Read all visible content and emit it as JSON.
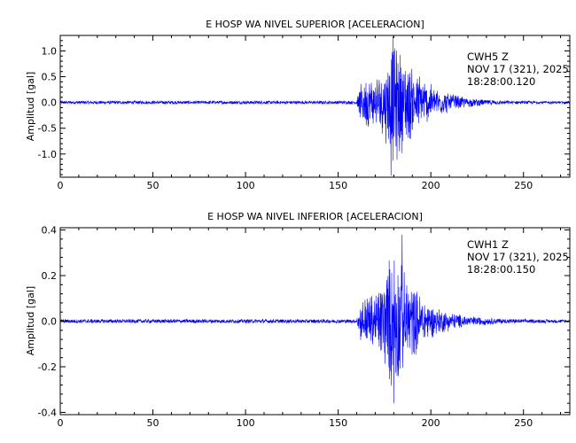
{
  "chart_data": [
    {
      "type": "line",
      "title": "E HOSP WA NIVEL SUPERIOR [ACELERACION]",
      "ylabel": "Amplitud [gal]",
      "xlabel": "",
      "xlim": [
        0,
        275
      ],
      "ylim": [
        -1.45,
        1.3
      ],
      "x_ticks": [
        0,
        50,
        100,
        150,
        200,
        250
      ],
      "x_tick_labels": [
        "0",
        "50",
        "100",
        "150",
        "200",
        "250"
      ],
      "y_ticks": [
        -1.0,
        -0.5,
        0.0,
        0.5,
        1.0
      ],
      "y_tick_labels": [
        "-1.0",
        "-0.5",
        "0.0",
        "0.5",
        "1.0"
      ],
      "line_color": "#0000ff",
      "annotation": [
        "CWH5   Z",
        "NOV 17 (321), 2025",
        "18:28:00.120"
      ],
      "trace_envelope": {
        "description_x": [
          0,
          160,
          162,
          165,
          170,
          175,
          180,
          185,
          190,
          195,
          200,
          205,
          210,
          220,
          230,
          240,
          250,
          260,
          275
        ],
        "amplitude": [
          0.03,
          0.03,
          0.35,
          0.55,
          0.5,
          0.75,
          1.3,
          1.0,
          0.75,
          0.55,
          0.38,
          0.28,
          0.2,
          0.1,
          0.06,
          0.04,
          0.035,
          0.03,
          0.03
        ],
        "peak_max": [
          179.5,
          1.28
        ],
        "peak_min": [
          178.5,
          -1.42
        ],
        "noise_level": 0.03
      }
    },
    {
      "type": "line",
      "title": "E HOSP WA NIVEL INFERIOR [ACELERACION]",
      "ylabel": "Amplitud [gal]",
      "xlabel": "",
      "xlim": [
        0,
        275
      ],
      "ylim": [
        -0.41,
        0.41
      ],
      "x_ticks": [
        0,
        50,
        100,
        150,
        200,
        250
      ],
      "x_tick_labels": [
        "0",
        "50",
        "100",
        "150",
        "200",
        "250"
      ],
      "y_ticks": [
        -0.4,
        -0.2,
        0.0,
        0.2,
        0.4
      ],
      "y_tick_labels": [
        "-0.4",
        "-0.2",
        "0.0",
        "0.2",
        "0.4"
      ],
      "line_color": "#0000ff",
      "annotation": [
        "CWH1   Z",
        "NOV 17 (321), 2025",
        "18:28:00.150"
      ],
      "trace_envelope": {
        "description_x": [
          0,
          160,
          162,
          165,
          170,
          175,
          180,
          185,
          190,
          195,
          200,
          205,
          210,
          220,
          230,
          240,
          250,
          260,
          275
        ],
        "amplitude": [
          0.008,
          0.008,
          0.09,
          0.13,
          0.14,
          0.22,
          0.38,
          0.24,
          0.18,
          0.12,
          0.08,
          0.06,
          0.045,
          0.025,
          0.018,
          0.012,
          0.01,
          0.009,
          0.008
        ],
        "peak_max": [
          184.5,
          0.38
        ],
        "peak_min": [
          180.0,
          -0.36
        ],
        "noise_level": 0.008
      }
    }
  ]
}
